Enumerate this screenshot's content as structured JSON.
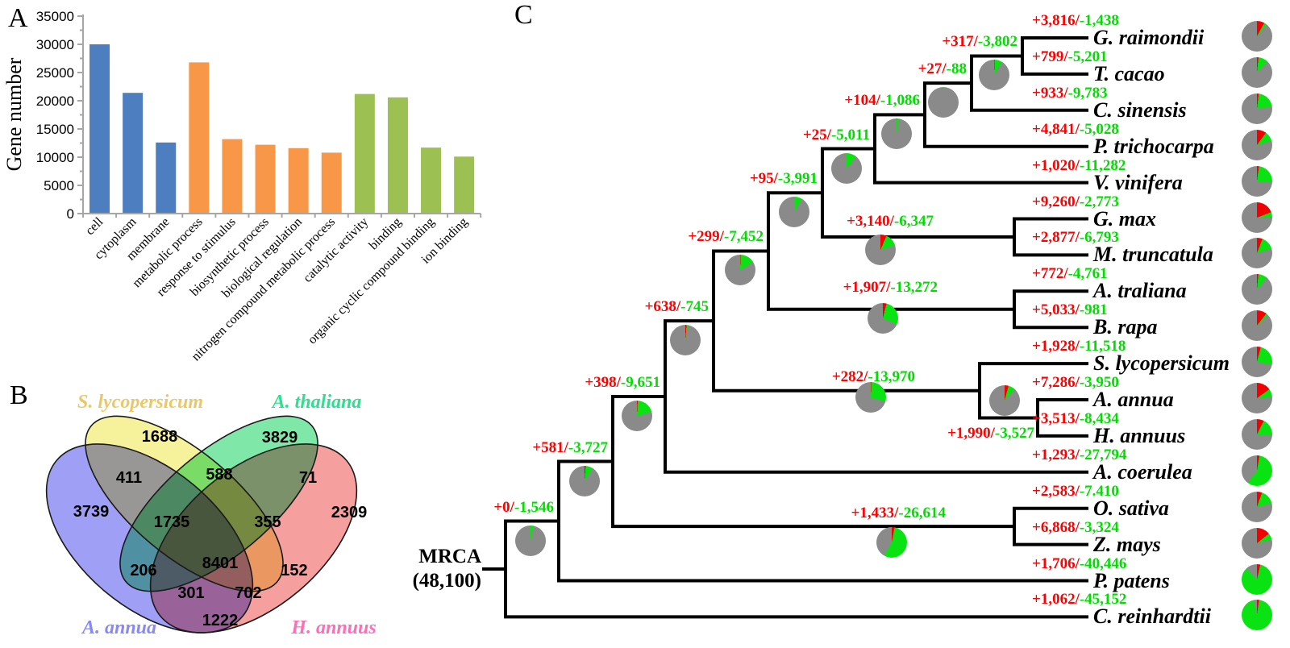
{
  "figure": {
    "panel_a_letter": "A",
    "panel_b_letter": "B",
    "panel_c_letter": "C"
  },
  "chart_data": [
    {
      "type": "bar",
      "panel": "A",
      "title": "",
      "xlabel": "",
      "ylabel": "Gene number",
      "ylim": [
        0,
        35000
      ],
      "ytick_step": 5000,
      "minor_tick_step": 2500,
      "grid": false,
      "categories": [
        "cell",
        "cytoplasm",
        "membrane",
        "metabolic process",
        "response to stimulus",
        "biosynthetic process",
        "biological regulation",
        "nitrogen compound metabolic process",
        "catalytic activity",
        "binding",
        "organic cyclic compound binding",
        "ion binding"
      ],
      "values": [
        30000,
        21400,
        12600,
        26800,
        13200,
        12200,
        11600,
        10800,
        21200,
        20600,
        11700,
        10100
      ],
      "bar_colors": [
        "#4d7ebf",
        "#4d7ebf",
        "#4d7ebf",
        "#f89748",
        "#f89748",
        "#f89748",
        "#f89748",
        "#f89748",
        "#9cc152",
        "#9cc152",
        "#9cc152",
        "#9cc152"
      ],
      "group_colors": {
        "cellular_component": "#4d7ebf",
        "biological_process": "#f89748",
        "molecular_function": "#9cc152"
      },
      "axis_color": "#a6a6a6"
    },
    {
      "type": "venn",
      "panel": "B",
      "sets": [
        {
          "key": "S",
          "name": "S. lycopersicum",
          "fill": "#f5f29b",
          "label_color": "#eac868"
        },
        {
          "key": "T",
          "name": "A. thaliana",
          "fill": "#7fe8a9",
          "label_color": "#2ee08e"
        },
        {
          "key": "A",
          "name": "A. annua",
          "fill": "#9f9ff5",
          "label_color": "#8888fa"
        },
        {
          "key": "H",
          "name": "H. annuus",
          "fill": "#f59f9f",
          "label_color": "#ff6eb5"
        }
      ],
      "regions": [
        {
          "sets": "S",
          "value": "1688"
        },
        {
          "sets": "T",
          "value": "3829"
        },
        {
          "sets": "A",
          "value": "3739"
        },
        {
          "sets": "H",
          "value": "2309"
        },
        {
          "sets": "A∩S",
          "value": "411"
        },
        {
          "sets": "S∩T",
          "value": "588"
        },
        {
          "sets": "T∩H",
          "value": "71"
        },
        {
          "sets": "A∩S∩T",
          "value": "1735"
        },
        {
          "sets": "S∩T∩H",
          "value": "355"
        },
        {
          "sets": "A∩T",
          "value": "206"
        },
        {
          "sets": "A∩S∩T∩H",
          "value": "8401"
        },
        {
          "sets": "S∩H",
          "value": "152"
        },
        {
          "sets": "A∩T∩H",
          "value": "301"
        },
        {
          "sets": "A∩S∩H",
          "value": "702"
        },
        {
          "sets": "A∩H",
          "value": "1222"
        }
      ]
    },
    {
      "type": "tree",
      "panel": "C",
      "root_label": "MRCA",
      "root_families": "(48,100)",
      "gain_color": "#ff0000",
      "loss_color": "#00de00",
      "pie_colors": {
        "gained": "#f40000",
        "lost": "#0ae312",
        "conserved": "#8a8a8a"
      },
      "pie_total_families": 48100,
      "root": {
        "id": "root",
        "children": [
          {
            "id": "A",
            "gain": "+0",
            "loss": "-1,546",
            "children": [
              {
                "id": "B",
                "gain": "+581",
                "loss": "-3,727",
                "children": [
                  {
                    "id": "C",
                    "gain": "+398",
                    "loss": "-9,651",
                    "children": [
                      {
                        "id": "D",
                        "gain": "+638",
                        "loss": "-745",
                        "children": [
                          {
                            "id": "E",
                            "gain": "+299",
                            "loss": "-7,452",
                            "children": [
                              {
                                "id": "F",
                                "gain": "+95",
                                "loss": "-3,991",
                                "children": [
                                  {
                                    "id": "G",
                                    "gain": "+25",
                                    "loss": "-5,011",
                                    "children": [
                                      {
                                        "id": "H",
                                        "gain": "+104",
                                        "loss": "-1,086",
                                        "children": [
                                          {
                                            "id": "I",
                                            "gain": "+27",
                                            "loss": "-88",
                                            "children": [
                                              {
                                                "id": "J",
                                                "gain": "+317",
                                                "loss": "-3,802",
                                                "children": [
                                                  {
                                                    "name": "G. raimondii",
                                                    "gain": "+3,816",
                                                    "loss": "-1,438"
                                                  },
                                                  {
                                                    "name": "T. cacao",
                                                    "gain": "+799",
                                                    "loss": "-5,201"
                                                  }
                                                ]
                                              },
                                              {
                                                "name": "C. sinensis",
                                                "gain": "+933",
                                                "loss": "-9,783"
                                              }
                                            ]
                                          },
                                          {
                                            "name": "P. trichocarpa",
                                            "gain": "+4,841",
                                            "loss": "-5,028"
                                          }
                                        ]
                                      },
                                      {
                                        "name": "V. vinifera",
                                        "gain": "+1,020",
                                        "loss": "-11,282"
                                      }
                                    ]
                                  },
                                  {
                                    "id": "K",
                                    "gain": "+3,140",
                                    "loss": "-6,347",
                                    "children": [
                                      {
                                        "name": "G. max",
                                        "gain": "+9,260",
                                        "loss": "-2,773"
                                      },
                                      {
                                        "name": "M. truncatula",
                                        "gain": "+2,877",
                                        "loss": "-6,793"
                                      }
                                    ]
                                  }
                                ]
                              },
                              {
                                "id": "L",
                                "gain": "+1,907",
                                "loss": "-13,272",
                                "children": [
                                  {
                                    "name": "A. traliana",
                                    "gain": "+772",
                                    "loss": "-4,761"
                                  },
                                  {
                                    "name": "B. rapa",
                                    "gain": "+5,033",
                                    "loss": "-981"
                                  }
                                ]
                              }
                            ]
                          },
                          {
                            "id": "M",
                            "gain": "+282",
                            "loss": "-13,970",
                            "children": [
                              {
                                "name": "S. lycopersicum",
                                "gain": "+1,928",
                                "loss": "-11,518"
                              },
                              {
                                "id": "N",
                                "gain": "+1,990",
                                "loss": "-3,527",
                                "children": [
                                  {
                                    "name": "A. annua",
                                    "gain": "+7,286",
                                    "loss": "-3,950"
                                  },
                                  {
                                    "name": "H. annuus",
                                    "gain": "+3,513",
                                    "loss": "-8,434"
                                  }
                                ]
                              }
                            ]
                          }
                        ]
                      },
                      {
                        "name": "A. coerulea",
                        "gain": "+1,293",
                        "loss": "-27,794"
                      }
                    ]
                  },
                  {
                    "id": "O",
                    "gain": "+1,433",
                    "loss": "-26,614",
                    "children": [
                      {
                        "name": "O. sativa",
                        "gain": "+2,583",
                        "loss": "-7.410"
                      },
                      {
                        "name": "Z. mays",
                        "gain": "+6,868",
                        "loss": "-3,324"
                      }
                    ]
                  }
                ]
              },
              {
                "name": "P. patens",
                "gain": "+1,706",
                "loss": "-40,446"
              }
            ]
          },
          {
            "name": "C. reinhardtii",
            "gain": "+1,062",
            "loss": "-45,152"
          }
        ]
      }
    }
  ]
}
